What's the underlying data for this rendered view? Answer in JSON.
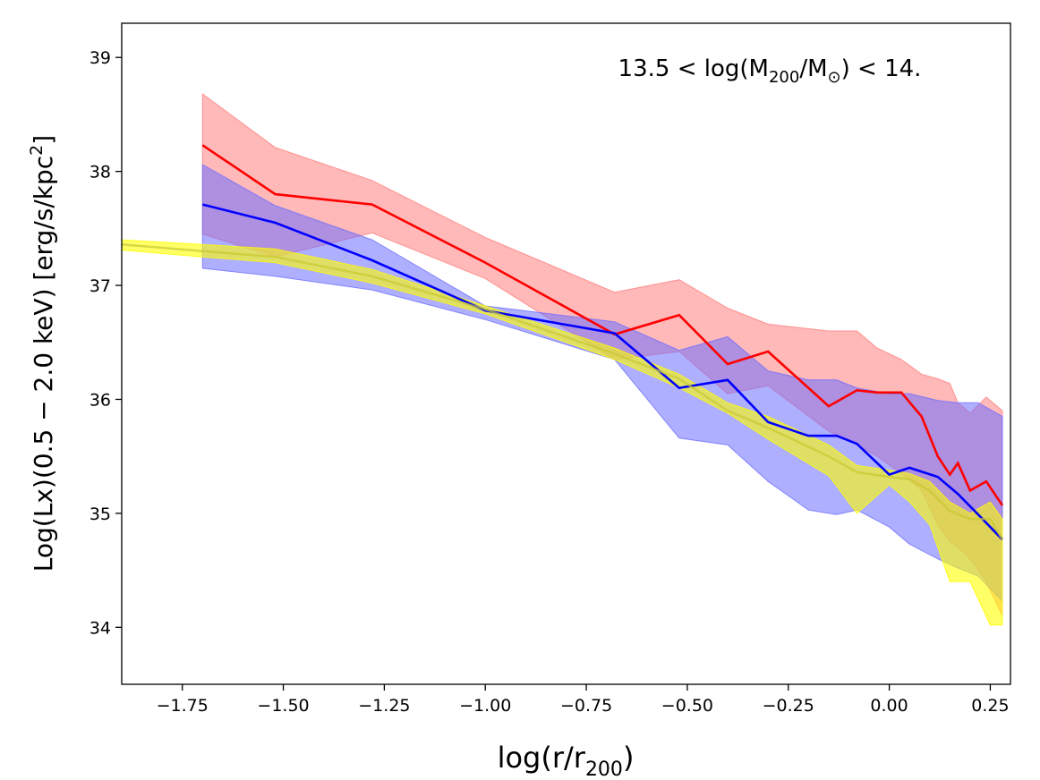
{
  "chart_data": {
    "type": "line",
    "annotation": {
      "text": "13.5 < log(M",
      "sub1": "200",
      "mid": "/M",
      "sub2": "⊙",
      "end": ") < 14."
    },
    "xlabel": {
      "main": "log(r/r",
      "sub": "200",
      "end": ")"
    },
    "ylabel": {
      "main": "Log(Lx)(0.5 − 2.0 keV) [erg/s/kpc",
      "sup": "2",
      "end": "]"
    },
    "xlim": [
      -1.9,
      0.3
    ],
    "ylim": [
      33.5,
      39.3
    ],
    "xticks": [
      -1.75,
      -1.5,
      -1.25,
      -1.0,
      -0.75,
      -0.5,
      -0.25,
      0.0,
      0.25
    ],
    "xtick_labels": [
      "−1.75",
      "−1.50",
      "−1.25",
      "−1.00",
      "−0.75",
      "−0.50",
      "−0.25",
      "0.00",
      "0.25"
    ],
    "yticks": [
      34,
      35,
      36,
      37,
      38,
      39
    ],
    "ytick_labels": [
      "34",
      "35",
      "36",
      "37",
      "38",
      "39"
    ],
    "series": [
      {
        "name": "red",
        "color": "#ff0000",
        "band_color": "#ff8080",
        "x": [
          -1.7,
          -1.52,
          -1.28,
          -1.0,
          -0.68,
          -0.52,
          -0.4,
          -0.3,
          -0.15,
          -0.08,
          -0.03,
          0.03,
          0.08,
          0.12,
          0.15,
          0.17,
          0.2,
          0.24,
          0.28
        ],
        "y": [
          38.23,
          37.8,
          37.71,
          37.2,
          36.57,
          36.74,
          36.31,
          36.42,
          35.94,
          36.08,
          36.06,
          36.06,
          35.85,
          35.5,
          35.34,
          35.44,
          35.2,
          35.28,
          35.07
        ],
        "upper": [
          38.68,
          38.21,
          37.92,
          37.42,
          36.94,
          37.05,
          36.8,
          36.66,
          36.6,
          36.6,
          36.45,
          36.35,
          36.22,
          36.18,
          36.14,
          35.97,
          35.88,
          36.02,
          35.9
        ],
        "lower": [
          37.45,
          37.25,
          37.46,
          37.06,
          36.35,
          36.42,
          36.05,
          36.12,
          35.72,
          35.6,
          35.5,
          35.35,
          35.2,
          34.9,
          34.75,
          34.7,
          34.6,
          34.4,
          34.1
        ]
      },
      {
        "name": "blue",
        "color": "#0000ff",
        "band_color": "#6e6eff",
        "x": [
          -1.7,
          -1.52,
          -1.28,
          -1.0,
          -0.68,
          -0.52,
          -0.4,
          -0.3,
          -0.2,
          -0.13,
          -0.08,
          0.0,
          0.05,
          0.12,
          0.17,
          0.22,
          0.28
        ],
        "y": [
          37.71,
          37.55,
          37.22,
          36.78,
          36.58,
          36.1,
          36.17,
          35.8,
          35.68,
          35.68,
          35.61,
          35.34,
          35.4,
          35.32,
          35.17,
          34.99,
          34.77
        ],
        "upper": [
          38.06,
          37.7,
          37.4,
          36.82,
          36.68,
          36.43,
          36.55,
          36.25,
          36.17,
          36.17,
          36.1,
          36.05,
          36.05,
          35.99,
          35.97,
          35.97,
          35.85
        ],
        "lower": [
          37.15,
          37.08,
          36.96,
          36.7,
          36.35,
          35.66,
          35.6,
          35.28,
          35.03,
          34.99,
          35.03,
          34.88,
          34.73,
          34.6,
          34.52,
          34.45,
          34.23
        ]
      },
      {
        "name": "yellow",
        "color": "#c8c832",
        "band_color": "#ffff00",
        "x": [
          -1.9,
          -1.7,
          -1.52,
          -1.28,
          -1.0,
          -0.68,
          -0.52,
          -0.4,
          -0.3,
          -0.15,
          -0.08,
          0.0,
          0.05,
          0.1,
          0.15,
          0.2,
          0.25,
          0.28
        ],
        "y": [
          37.36,
          37.3,
          37.25,
          37.08,
          36.79,
          36.4,
          36.18,
          35.9,
          35.75,
          35.5,
          35.36,
          35.32,
          35.3,
          35.2,
          35.02,
          34.95,
          34.95,
          34.77
        ],
        "upper": [
          37.4,
          37.36,
          37.32,
          37.14,
          36.82,
          36.45,
          36.22,
          35.97,
          35.85,
          35.6,
          35.42,
          35.38,
          35.35,
          35.28,
          35.1,
          35.0,
          35.1,
          34.95
        ],
        "lower": [
          37.31,
          37.25,
          37.2,
          37.02,
          36.75,
          36.35,
          36.1,
          35.88,
          35.65,
          35.33,
          35.0,
          35.25,
          35.1,
          34.9,
          34.4,
          34.4,
          34.02,
          34.02
        ]
      }
    ]
  }
}
